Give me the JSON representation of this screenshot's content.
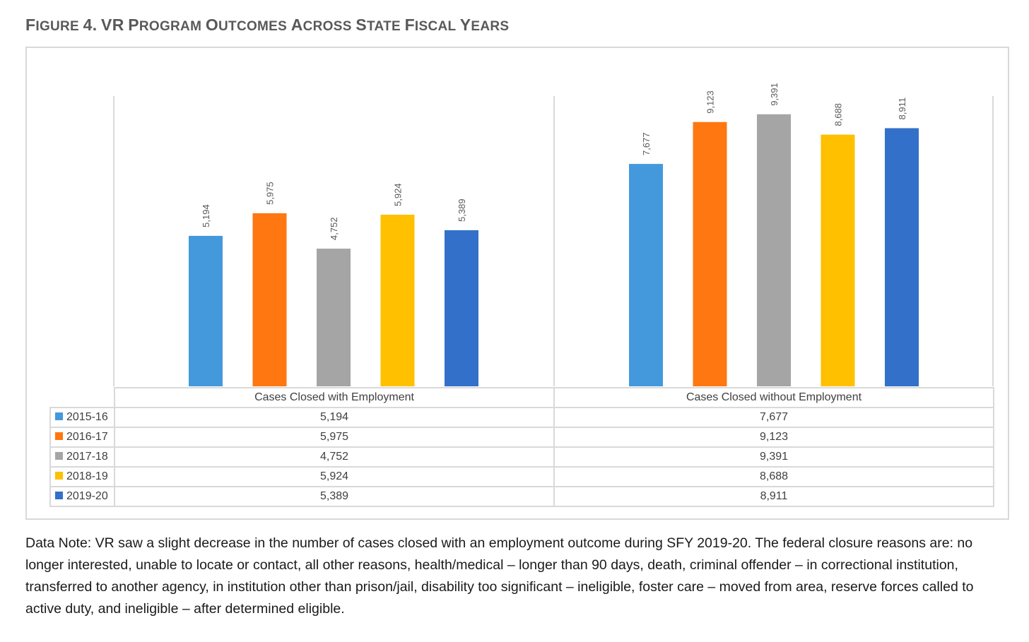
{
  "figure": {
    "title_prefix": "Figure 4.",
    "title_main": "VR Program outcomes across state fiscal years"
  },
  "chart_data": {
    "type": "bar",
    "categories": [
      "Cases Closed with Employment",
      "Cases Closed without Employment"
    ],
    "series": [
      {
        "name": "2015-16",
        "color": "#4499dd",
        "values": [
          5194,
          7677
        ]
      },
      {
        "name": "2016-17",
        "color": "#ff7711",
        "values": [
          5975,
          9123
        ]
      },
      {
        "name": "2017-18",
        "color": "#a5a5a5",
        "values": [
          4752,
          9391
        ]
      },
      {
        "name": "2018-19",
        "color": "#ffc000",
        "values": [
          5924,
          8688
        ]
      },
      {
        "name": "2019-20",
        "color": "#3370c9",
        "values": [
          5389,
          8911
        ]
      }
    ],
    "data_labels": [
      [
        "5,194",
        "7,677"
      ],
      [
        "5,975",
        "9,123"
      ],
      [
        "4,752",
        "9,391"
      ],
      [
        "5,924",
        "8,688"
      ],
      [
        "5,389",
        "8,911"
      ]
    ],
    "ylim": [
      0,
      10000
    ],
    "yaxis_shown": false,
    "grid": false,
    "legend": "data-table-below"
  },
  "data_note": "Data Note: VR saw a slight decrease in the number of cases closed with an employment outcome during SFY 2019-20. The federal closure reasons are: no longer interested, unable to locate or contact, all other reasons, health/medical – longer than 90 days, death, criminal offender – in correctional institution, transferred to another agency, in institution other than prison/jail, disability too significant – ineligible, foster care – moved from area, reserve forces called to active duty, and ineligible – after determined eligible."
}
